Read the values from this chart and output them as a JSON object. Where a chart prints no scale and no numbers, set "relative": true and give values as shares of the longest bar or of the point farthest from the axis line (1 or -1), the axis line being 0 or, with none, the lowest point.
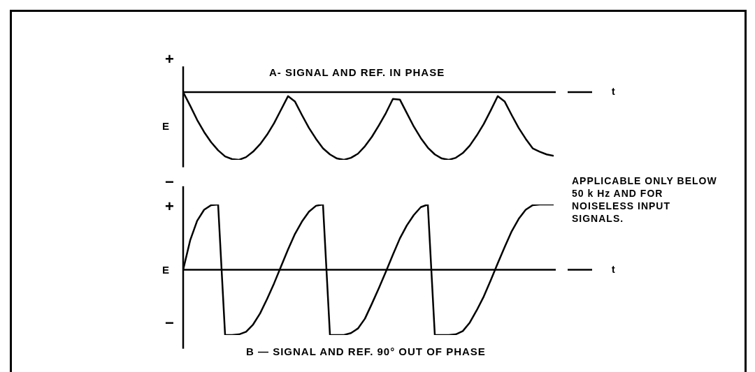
{
  "chart_data": [
    {
      "type": "line",
      "title": "A- SIGNAL AND REF. IN PHASE",
      "xlabel": "t",
      "ylabel": "E",
      "relative": true,
      "marker": "none",
      "tick_labels": false,
      "categories": [
        null,
        null,
        null,
        null,
        null,
        null,
        null,
        null,
        null,
        null,
        null,
        null,
        null,
        null,
        null,
        null,
        null,
        null,
        null,
        null,
        null,
        null,
        null,
        null,
        null,
        null,
        null,
        null,
        null,
        null,
        null,
        null,
        null,
        null,
        null,
        null,
        null,
        null,
        null,
        null,
        null,
        null,
        null,
        null,
        null,
        null,
        null,
        null,
        null,
        null,
        null,
        null,
        null,
        null
      ],
      "series": [
        {
          "color": "#000000",
          "values": [
            0,
            -0.2,
            -0.41,
            -0.59,
            -0.74,
            -0.86,
            -0.95,
            -0.99,
            -1,
            -0.96,
            -0.88,
            -0.77,
            -0.63,
            -0.46,
            -0.26,
            -0.06,
            -0.14,
            -0.34,
            -0.53,
            -0.69,
            -0.83,
            -0.92,
            -0.98,
            -1,
            -0.97,
            -0.91,
            -0.8,
            -0.66,
            -0.49,
            -0.31,
            -0.1,
            -0.11,
            -0.31,
            -0.51,
            -0.68,
            -0.82,
            -0.92,
            -0.98,
            -1,
            -0.97,
            -0.9,
            -0.79,
            -0.64,
            -0.47,
            -0.27,
            -0.06,
            -0.14,
            -0.34,
            -0.53,
            -0.69,
            -0.83,
            -0.88,
            -0.92,
            -0.94
          ]
        }
      ],
      "annotations": [
        "+",
        "−"
      ]
    },
    {
      "type": "line",
      "title": "B — SIGNAL AND REF. 90° OUT OF PHASE",
      "xlabel": "t",
      "ylabel": "E",
      "relative": true,
      "marker": "none",
      "tick_labels": false,
      "categories": [
        null,
        null,
        null,
        null,
        null,
        null,
        null,
        null,
        null,
        null,
        null,
        null,
        null,
        null,
        null,
        null,
        null,
        null,
        null,
        null,
        null,
        null,
        null,
        null,
        null,
        null,
        null,
        null,
        null,
        null,
        null,
        null,
        null,
        null,
        null,
        null,
        null,
        null,
        null,
        null,
        null,
        null,
        null,
        null,
        null,
        null,
        null,
        null,
        null,
        null,
        null,
        null,
        null,
        null
      ],
      "series": [
        {
          "color": "#000000",
          "values": [
            0,
            0.45,
            0.75,
            0.92,
            0.99,
            1,
            -1,
            -1,
            -0.99,
            -0.95,
            -0.84,
            -0.67,
            -0.45,
            -0.21,
            0.05,
            0.31,
            0.55,
            0.74,
            0.89,
            0.98,
            1,
            -1,
            -1,
            -1,
            -0.97,
            -0.9,
            -0.75,
            -0.52,
            -0.28,
            -0.03,
            0.23,
            0.48,
            0.68,
            0.84,
            0.96,
            1,
            -1,
            -1,
            -1,
            -0.99,
            -0.94,
            -0.81,
            -0.62,
            -0.41,
            -0.16,
            0.1,
            0.35,
            0.59,
            0.78,
            0.92,
            0.99,
            1,
            1,
            1
          ]
        }
      ],
      "annotations": [
        "+",
        "−",
        "APPLICABLE ONLY BELOW 50 k Hz AND FOR NOISELESS INPUT SIGNALS."
      ]
    }
  ]
}
